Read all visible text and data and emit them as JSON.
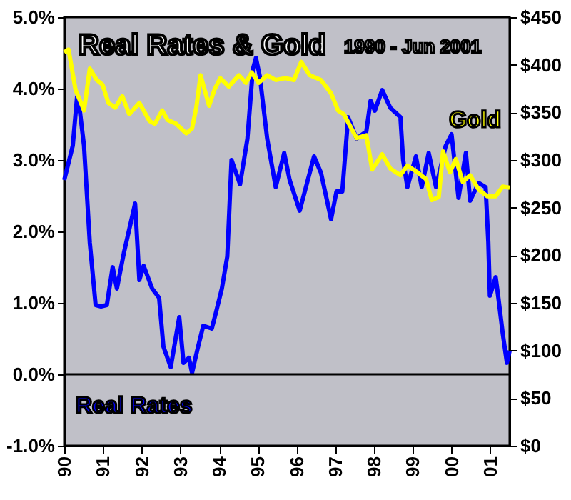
{
  "chart_data": {
    "type": "line",
    "title": "Real Rates & Gold",
    "subtitle": "1990 - Jun 2001",
    "xlim": [
      1990,
      2001.5
    ],
    "xticks": [
      {
        "value": 1990,
        "label": "90"
      },
      {
        "value": 1991,
        "label": "91"
      },
      {
        "value": 1992,
        "label": "92"
      },
      {
        "value": 1993,
        "label": "93"
      },
      {
        "value": 1994,
        "label": "94"
      },
      {
        "value": 1995,
        "label": "95"
      },
      {
        "value": 1996,
        "label": "96"
      },
      {
        "value": 1997,
        "label": "97"
      },
      {
        "value": 1998,
        "label": "98"
      },
      {
        "value": 1999,
        "label": "99"
      },
      {
        "value": 2000,
        "label": "00"
      },
      {
        "value": 2001,
        "label": "01"
      }
    ],
    "ylim": [
      -1,
      5
    ],
    "yticks": [
      {
        "value": -1,
        "label": "-1.0%"
      },
      {
        "value": 0,
        "label": "0.0%"
      },
      {
        "value": 1,
        "label": "1.0%"
      },
      {
        "value": 2,
        "label": "2.0%"
      },
      {
        "value": 3,
        "label": "3.0%"
      },
      {
        "value": 4,
        "label": "4.0%"
      },
      {
        "value": 5,
        "label": "5.0%"
      }
    ],
    "y2lim": [
      0,
      450
    ],
    "y2ticks": [
      {
        "value": 0,
        "label": "$0"
      },
      {
        "value": 50,
        "label": "$50"
      },
      {
        "value": 100,
        "label": "$100"
      },
      {
        "value": 150,
        "label": "$150"
      },
      {
        "value": 200,
        "label": "$200"
      },
      {
        "value": 250,
        "label": "$250"
      },
      {
        "value": 300,
        "label": "$300"
      },
      {
        "value": 350,
        "label": "$350"
      },
      {
        "value": 400,
        "label": "$400"
      },
      {
        "value": 450,
        "label": "$450"
      }
    ],
    "grid": false,
    "marker": "none",
    "line_style": "solid",
    "ref_lines": [
      {
        "axis": "y",
        "value": 0,
        "color": "#000000"
      }
    ],
    "series": [
      {
        "name": "Real Rates",
        "color": "#0000ff",
        "x": [
          1990.0,
          1990.22,
          1990.33,
          1990.4,
          1990.51,
          1990.66,
          1990.81,
          1990.95,
          1991.1,
          1991.25,
          1991.36,
          1991.54,
          1991.83,
          1991.94,
          1992.05,
          1992.27,
          1992.45,
          1992.56,
          1992.75,
          1992.97,
          1993.08,
          1993.22,
          1993.3,
          1993.44,
          1993.59,
          1993.81,
          1993.92,
          1994.07,
          1994.21,
          1994.32,
          1994.54,
          1994.73,
          1994.87,
          1994.95,
          1995.05,
          1995.24,
          1995.46,
          1995.68,
          1995.82,
          1996.08,
          1996.45,
          1996.63,
          1996.89,
          1997.03,
          1997.18,
          1997.33,
          1997.55,
          1997.8,
          1997.91,
          1998.02,
          1998.21,
          1998.42,
          1998.68,
          1998.75,
          1998.86,
          1999.08,
          1999.23,
          1999.41,
          1999.6,
          1999.85,
          2000.0,
          2000.18,
          2000.37,
          2000.48,
          2000.7,
          2000.88,
          2000.95,
          2000.99,
          2001.14,
          2001.21,
          2001.32,
          2001.43,
          2001.5
        ],
        "values": [
          2.72,
          3.2,
          3.88,
          3.7,
          3.2,
          1.84,
          0.97,
          0.95,
          0.97,
          1.5,
          1.2,
          1.7,
          2.39,
          1.32,
          1.52,
          1.2,
          1.07,
          0.39,
          0.1,
          0.8,
          0.16,
          0.23,
          0.02,
          0.35,
          0.68,
          0.64,
          0.87,
          1.2,
          1.65,
          3.0,
          2.66,
          3.3,
          4.27,
          4.43,
          4.17,
          3.3,
          2.62,
          3.1,
          2.72,
          2.29,
          3.05,
          2.82,
          2.17,
          2.56,
          2.56,
          3.6,
          3.3,
          3.4,
          3.83,
          3.69,
          3.98,
          3.73,
          3.6,
          3.0,
          2.62,
          3.05,
          2.62,
          3.1,
          2.62,
          3.2,
          3.36,
          2.47,
          3.1,
          2.43,
          2.68,
          2.62,
          1.85,
          1.1,
          1.36,
          1.07,
          0.58,
          0.16,
          0.33
        ]
      },
      {
        "name": "Gold",
        "color": "#ffff00",
        "axis": "y2",
        "x": [
          1990.0,
          1990.11,
          1990.29,
          1990.51,
          1990.66,
          1990.84,
          1990.99,
          1991.14,
          1991.32,
          1991.5,
          1991.68,
          1991.94,
          1992.2,
          1992.34,
          1992.53,
          1992.67,
          1992.89,
          1993.15,
          1993.3,
          1993.41,
          1993.52,
          1993.74,
          1993.88,
          1994.03,
          1994.25,
          1994.51,
          1994.69,
          1994.84,
          1995.02,
          1995.24,
          1995.46,
          1995.71,
          1995.93,
          1996.12,
          1996.34,
          1996.63,
          1996.89,
          1997.07,
          1997.22,
          1997.55,
          1997.8,
          1997.95,
          1998.21,
          1998.42,
          1998.68,
          1998.86,
          1999.12,
          1999.34,
          1999.49,
          1999.67,
          1999.78,
          1999.96,
          2000.11,
          2000.29,
          2000.48,
          2000.7,
          2000.92,
          2001.14,
          2001.32,
          2001.5
        ],
        "values": [
          413,
          416,
          374,
          352,
          396,
          384,
          379,
          360,
          355,
          367,
          348,
          360,
          341,
          338,
          352,
          342,
          338,
          328,
          333,
          355,
          389,
          357,
          374,
          386,
          377,
          389,
          381,
          392,
          381,
          389,
          384,
          386,
          384,
          403,
          389,
          384,
          370,
          352,
          348,
          323,
          326,
          290,
          306,
          291,
          284,
          294,
          287,
          280,
          258,
          261,
          309,
          287,
          301,
          277,
          284,
          269,
          262,
          262,
          272,
          271
        ]
      }
    ]
  }
}
